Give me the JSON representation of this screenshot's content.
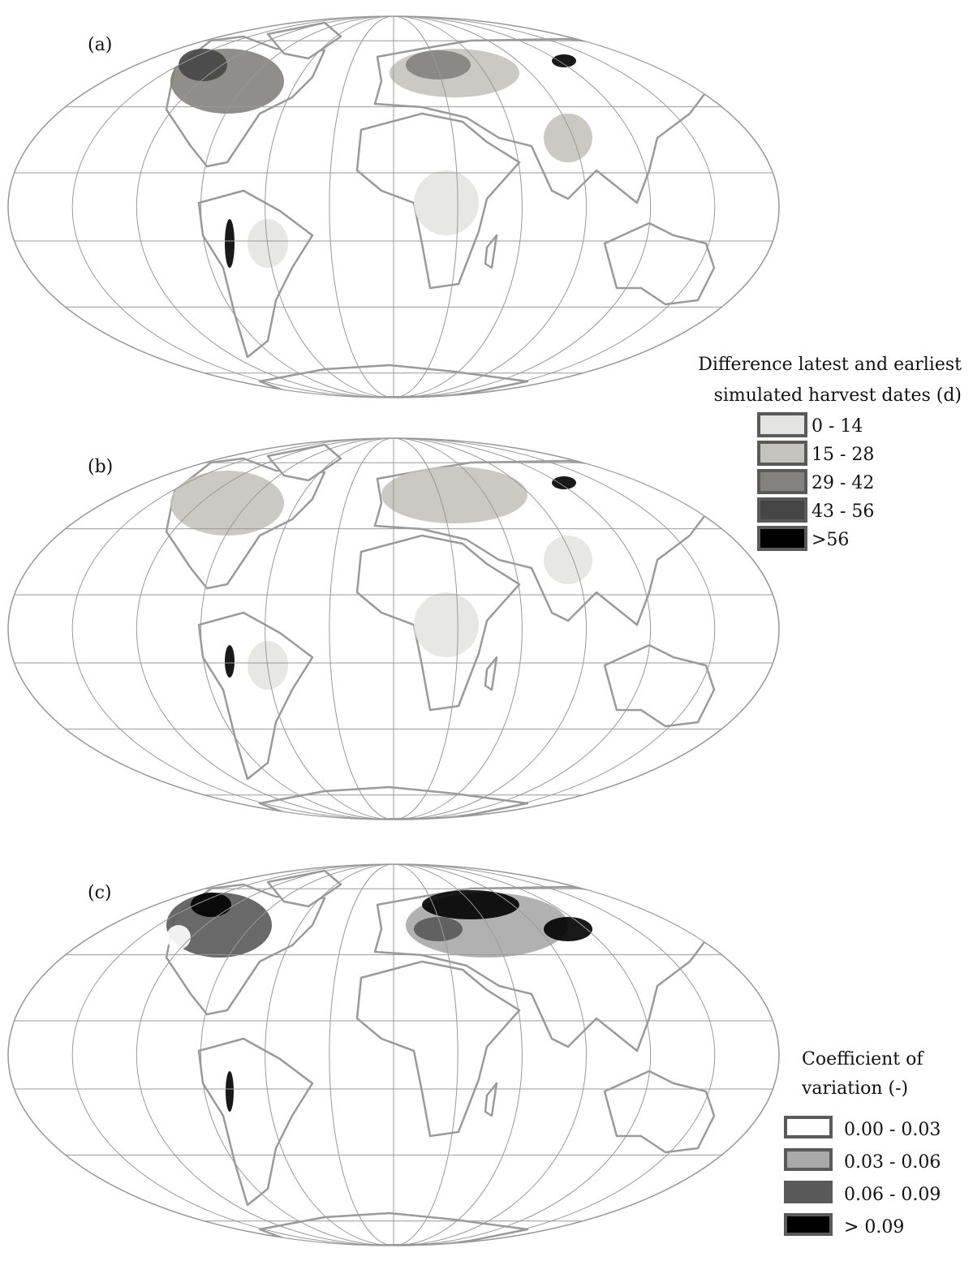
{
  "panels": [
    {
      "label": "(a)"
    },
    {
      "label": "(b)"
    },
    {
      "label": "(c)"
    }
  ],
  "legends": [
    {
      "title_lines": [
        "Difference latest and earliest",
        "simulated harvest dates (d)"
      ],
      "items": [
        {
          "label": "0 - 14",
          "color": "#e4e4e2"
        },
        {
          "label": "15 - 28",
          "color": "#c4c3bd"
        },
        {
          "label": "29 - 42",
          "color": "#84827e"
        },
        {
          "label": "43 - 56",
          "color": "#454545"
        },
        {
          "label": ">56",
          "color": "#000000"
        }
      ]
    },
    {
      "title_lines": [
        "Coefficient of",
        "variation (-)"
      ],
      "items": [
        {
          "label": "0.00 - 0.03",
          "color": "#ffffff"
        },
        {
          "label": "0.03 - 0.06",
          "color": "#a9a9a9"
        },
        {
          "label": "0.06 - 0.09",
          "color": "#595959"
        },
        {
          "label": "> 0.09",
          "color": "#000000"
        }
      ]
    }
  ]
}
